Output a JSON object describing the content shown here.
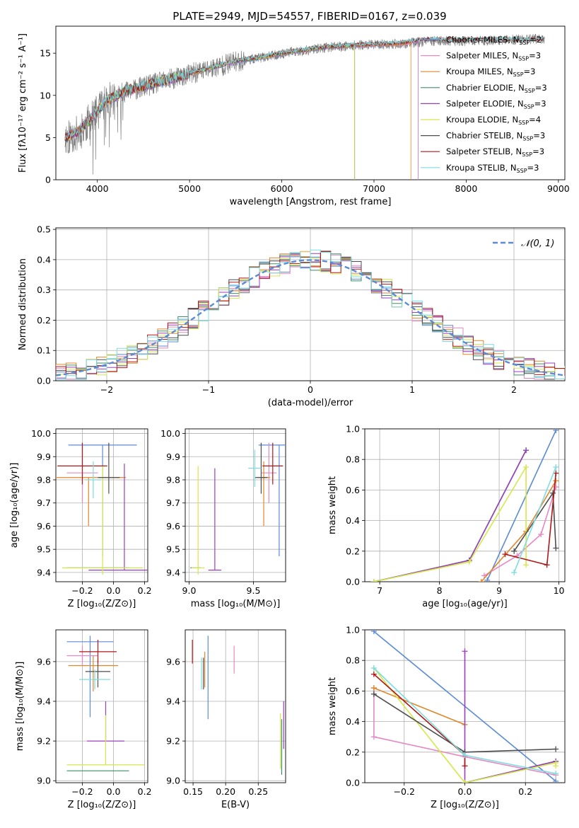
{
  "figure": {
    "title": "PLATE=2949, MJD=54557, FIBERID=0167, z=0.039"
  },
  "colors": {
    "Chabrier MILES": "#5b8bd6",
    "Salpeter MILES": "#e589c3",
    "Kroupa MILES": "#e0872c",
    "Chabrier ELODIE": "#3f8f6a",
    "Salpeter ELODIE": "#9b3fbf",
    "Kroupa ELODIE": "#d4e84a",
    "Chabrier STELIB": "#4d4d4d",
    "Salpeter STELIB": "#b01818",
    "Kroupa STELIB": "#7ddde0",
    "data": "#808080",
    "gaussian": "#5b8bd6"
  },
  "chart_data": [
    {
      "id": "spectrum",
      "type": "line",
      "xlabel": "wavelength [Angstrom, rest frame]",
      "ylabel": "Flux [fλ10⁻¹⁷ erg cm⁻² s⁻¹ A⁻¹]",
      "xlim": [
        3550,
        9070
      ],
      "ylim": [
        0,
        18.2
      ],
      "xticks": [
        4000,
        5000,
        6000,
        7000,
        8000,
        9000
      ],
      "yticks": [
        0,
        5,
        10,
        15
      ],
      "grid": false,
      "legend_position": "upper-right",
      "continuum": [
        [
          3650,
          5.0
        ],
        [
          3800,
          5.8
        ],
        [
          3950,
          7.5
        ],
        [
          4100,
          9.4
        ],
        [
          4300,
          10.5
        ],
        [
          4600,
          11.4
        ],
        [
          4900,
          12.3
        ],
        [
          5200,
          13.2
        ],
        [
          5500,
          14.1
        ],
        [
          5800,
          14.6
        ],
        [
          6100,
          15.2
        ],
        [
          6500,
          15.8
        ],
        [
          6900,
          16.0
        ],
        [
          7300,
          16.2
        ],
        [
          7500,
          16.6
        ]
      ],
      "data_continuum": [
        [
          3650,
          5.0
        ],
        [
          3800,
          5.6
        ],
        [
          3950,
          7.3
        ],
        [
          4100,
          9.2
        ],
        [
          4300,
          10.4
        ],
        [
          4600,
          11.3
        ],
        [
          4900,
          12.2
        ],
        [
          5200,
          13.1
        ],
        [
          5500,
          14.0
        ],
        [
          5800,
          14.5
        ],
        [
          6100,
          15.1
        ],
        [
          6500,
          15.7
        ],
        [
          6900,
          16.0
        ],
        [
          7300,
          16.1
        ],
        [
          7700,
          16.5
        ],
        [
          8000,
          16.4
        ],
        [
          8500,
          16.6
        ],
        [
          8850,
          16.7
        ]
      ],
      "data_range": [
        3650,
        8850
      ],
      "series": [
        {
          "name": "Chabrier MILES, N$_{SSP}$=2",
          "label": "Chabrier MILES, N",
          "ssp": "=2",
          "color_key": "Chabrier MILES",
          "x_end": 7480
        },
        {
          "name": "Salpeter MILES, N$_{SSP}$=3",
          "label": "Salpeter MILES, N",
          "ssp": "=3",
          "color_key": "Salpeter MILES",
          "x_end": 7480
        },
        {
          "name": "Kroupa MILES, N$_{SSP}$=3",
          "label": "Kroupa MILES, N",
          "ssp": "=3",
          "color_key": "Kroupa MILES",
          "x_end": 7400
        },
        {
          "name": "Chabrier ELODIE, N$_{SSP}$=3",
          "label": "Chabrier ELODIE, N",
          "ssp": "=3",
          "color_key": "Chabrier ELODIE",
          "x_end": 6790
        },
        {
          "name": "Salpeter ELODIE, N$_{SSP}$=3",
          "label": "Salpeter ELODIE, N",
          "ssp": "=3",
          "color_key": "Salpeter ELODIE",
          "x_end": 6790
        },
        {
          "name": "Kroupa ELODIE, N$_{SSP}$=4",
          "label": "Kroupa ELODIE, N",
          "ssp": "=4",
          "color_key": "Kroupa ELODIE",
          "x_end": 6790
        },
        {
          "name": "Chabrier STELIB, N$_{SSP}$=3",
          "label": "Chabrier STELIB, N",
          "ssp": "=3",
          "color_key": "Chabrier STELIB",
          "x_end": 8850
        },
        {
          "name": "Salpeter STELIB, N$_{SSP}$=3",
          "label": "Salpeter STELIB, N",
          "ssp": "=3",
          "color_key": "Salpeter STELIB",
          "x_end": 8850
        },
        {
          "name": "Kroupa STELIB, N$_{SSP}$=3",
          "label": "Kroupa STELIB, N",
          "ssp": "=3",
          "color_key": "Kroupa STELIB",
          "x_end": 8850
        }
      ]
    },
    {
      "id": "residuals",
      "type": "histogram",
      "xlabel": "(data-model)/error",
      "ylabel": "Normed distribution",
      "xlim": [
        -2.5,
        2.5
      ],
      "ylim": [
        0,
        0.505
      ],
      "xticks": [
        -2,
        -1,
        0,
        1,
        2
      ],
      "yticks": [
        0.0,
        0.1,
        0.2,
        0.3,
        0.4,
        0.5
      ],
      "grid": true,
      "legend_position": "upper-right",
      "legend": "𝒩(0, 1)",
      "bin_width": 0.1,
      "gaussian": {
        "mean": 0,
        "sigma": 1
      }
    },
    {
      "id": "age-vs-Z",
      "type": "errorbar",
      "xlabel": "Z [log₁₀(Z/Z⊙)]",
      "ylabel": "age  [log₁₀(age/yr)]",
      "xlim": [
        -0.37,
        0.22
      ],
      "ylim": [
        9.36,
        10.02
      ],
      "xticks": [
        -0.2,
        0.0,
        0.2
      ],
      "yticks": [
        9.4,
        9.5,
        9.6,
        9.7,
        9.8,
        9.9,
        10.0
      ],
      "grid": true,
      "points": [
        {
          "model": "Chabrier MILES",
          "x": -0.07,
          "xerr": 0.22,
          "y": 9.95,
          "yerr": [
            0.48,
            0.0
          ]
        },
        {
          "model": "Salpeter MILES",
          "x": -0.2,
          "xerr": 0.1,
          "y": 9.83,
          "yerr": [
            0.13,
            0.13
          ]
        },
        {
          "model": "Kroupa MILES",
          "x": -0.16,
          "xerr": 0.24,
          "y": 9.81,
          "yerr": [
            0.21,
            0.0
          ]
        },
        {
          "model": "Chabrier ELODIE",
          "x": -0.1,
          "xerr": 0.2,
          "y": 9.42,
          "yerr": [
            0.0,
            0.0
          ]
        },
        {
          "model": "Salpeter ELODIE",
          "x": 0.07,
          "xerr": 0.23,
          "y": 9.41,
          "yerr": [
            0.0,
            0.46
          ]
        },
        {
          "model": "Kroupa ELODIE",
          "x": -0.07,
          "xerr": 0.26,
          "y": 9.42,
          "yerr": [
            0.03,
            0.44
          ]
        },
        {
          "model": "Chabrier STELIB",
          "x": -0.03,
          "xerr": 0.07,
          "y": 9.81,
          "yerr": [
            0.07,
            0.15
          ]
        },
        {
          "model": "Salpeter STELIB",
          "x": -0.2,
          "xerr": 0.16,
          "y": 9.86,
          "yerr": [
            0.08,
            0.1
          ]
        },
        {
          "model": "Kroupa STELIB",
          "x": -0.13,
          "xerr": 0.05,
          "y": 9.8,
          "yerr": [
            0.08,
            0.08
          ]
        }
      ]
    },
    {
      "id": "age-vs-mass",
      "type": "errorbar",
      "xlabel": "mass [log₁₀(M/M⊙)]",
      "ylabel": "",
      "xlim": [
        8.97,
        9.75
      ],
      "ylim": [
        9.36,
        10.02
      ],
      "xticks": [
        9.0,
        9.5
      ],
      "yticks": [
        9.4,
        9.5,
        9.6,
        9.7,
        9.8,
        9.9,
        10.0
      ],
      "grid": true,
      "points": [
        {
          "model": "Chabrier MILES",
          "x": 9.7,
          "xerr": 0.16,
          "y": 9.95,
          "yerr": [
            0.48,
            0.0
          ]
        },
        {
          "model": "Salpeter MILES",
          "x": 9.62,
          "xerr": 0.06,
          "y": 9.83,
          "yerr": [
            0.13,
            0.13
          ]
        },
        {
          "model": "Kroupa MILES",
          "x": 9.58,
          "xerr": 0.05,
          "y": 9.81,
          "yerr": [
            0.21,
            0.07
          ]
        },
        {
          "model": "Chabrier ELODIE",
          "x": 9.05,
          "xerr": 0.04,
          "y": 9.42,
          "yerr": [
            0.0,
            0.0
          ]
        },
        {
          "model": "Salpeter ELODIE",
          "x": 9.2,
          "xerr": 0.05,
          "y": 9.41,
          "yerr": [
            0.0,
            0.44
          ]
        },
        {
          "model": "Kroupa ELODIE",
          "x": 9.07,
          "xerr": 0.05,
          "y": 9.42,
          "yerr": [
            0.03,
            0.44
          ]
        },
        {
          "model": "Chabrier STELIB",
          "x": 9.56,
          "xerr": 0.05,
          "y": 9.81,
          "yerr": [
            0.07,
            0.15
          ]
        },
        {
          "model": "Salpeter STELIB",
          "x": 9.65,
          "xerr": 0.08,
          "y": 9.86,
          "yerr": [
            0.08,
            0.1
          ]
        },
        {
          "model": "Kroupa STELIB",
          "x": 9.51,
          "xerr": 0.05,
          "y": 9.85,
          "yerr": [
            0.08,
            0.08
          ]
        }
      ]
    },
    {
      "id": "mass-weight-vs-age",
      "type": "line",
      "xlabel": "age  [log₁₀(age/yr)]",
      "ylabel": "mass weight",
      "xlim": [
        6.75,
        10.1
      ],
      "ylim": [
        0,
        1.0
      ],
      "xticks": [
        7,
        8,
        9,
        10
      ],
      "yticks": [
        0.0,
        0.2,
        0.4,
        0.6,
        0.8,
        1.0
      ],
      "grid": true,
      "series": [
        {
          "model": "Chabrier MILES",
          "x": [
            8.8,
            9.95
          ],
          "y": [
            0.01,
            0.99
          ]
        },
        {
          "model": "Salpeter MILES",
          "x": [
            8.75,
            9.3,
            9.7,
            9.95
          ],
          "y": [
            0.04,
            0.17,
            0.31,
            0.62
          ]
        },
        {
          "model": "Kroupa MILES",
          "x": [
            8.7,
            9.45,
            9.95
          ],
          "y": [
            0.0,
            0.33,
            0.66
          ]
        },
        {
          "model": "Chabrier ELODIE",
          "x": [
            6.9,
            8.5,
            9.45
          ],
          "y": [
            0.0,
            0.14,
            0.86
          ]
        },
        {
          "model": "Salpeter ELODIE",
          "x": [
            6.9,
            8.5,
            9.45
          ],
          "y": [
            0.0,
            0.14,
            0.86
          ]
        },
        {
          "model": "Kroupa ELODIE",
          "x": [
            6.9,
            8.5,
            9.45,
            9.45
          ],
          "y": [
            0.0,
            0.13,
            0.75,
            0.11
          ]
        },
        {
          "model": "Chabrier STELIB",
          "x": [
            9.25,
            9.9,
            9.95
          ],
          "y": [
            0.2,
            0.58,
            0.22
          ]
        },
        {
          "model": "Salpeter STELIB",
          "x": [
            9.1,
            9.8,
            9.95
          ],
          "y": [
            0.18,
            0.11,
            0.71
          ]
        },
        {
          "model": "Kroupa STELIB",
          "x": [
            9.25,
            9.95
          ],
          "y": [
            0.06,
            0.75
          ]
        }
      ]
    },
    {
      "id": "mass-vs-Z",
      "type": "errorbar",
      "xlabel": "Z [log₁₀(Z/Z⊙)]",
      "ylabel": "mass [log₁₀(M/M⊙)]",
      "xlim": [
        -0.37,
        0.22
      ],
      "ylim": [
        8.99,
        9.76
      ],
      "xticks": [
        -0.2,
        0.0,
        0.2
      ],
      "yticks": [
        9.0,
        9.2,
        9.4,
        9.6
      ],
      "grid": true,
      "points": [
        {
          "model": "Chabrier MILES",
          "x": -0.15,
          "xerr": 0.15,
          "y": 9.7,
          "yerr": [
            0.38,
            0.03
          ]
        },
        {
          "model": "Salpeter MILES",
          "x": -0.2,
          "xerr": 0.1,
          "y": 9.63,
          "yerr": [
            0.05,
            0.05
          ]
        },
        {
          "model": "Kroupa MILES",
          "x": -0.13,
          "xerr": 0.16,
          "y": 9.58,
          "yerr": [
            0.13,
            0.05
          ]
        },
        {
          "model": "Chabrier ELODIE",
          "x": -0.1,
          "xerr": 0.2,
          "y": 9.05,
          "yerr": [
            0.0,
            0.0
          ]
        },
        {
          "model": "Salpeter ELODIE",
          "x": -0.05,
          "xerr": 0.12,
          "y": 9.2,
          "yerr": [
            0.0,
            0.2
          ]
        },
        {
          "model": "Kroupa ELODIE",
          "x": -0.05,
          "xerr": 0.25,
          "y": 9.08,
          "yerr": [
            0.0,
            0.25
          ]
        },
        {
          "model": "Chabrier STELIB",
          "x": -0.1,
          "xerr": 0.08,
          "y": 9.55,
          "yerr": [
            0.08,
            0.06
          ]
        },
        {
          "model": "Salpeter STELIB",
          "x": -0.1,
          "xerr": 0.12,
          "y": 9.65,
          "yerr": [
            0.06,
            0.06
          ]
        },
        {
          "model": "Kroupa STELIB",
          "x": -0.12,
          "xerr": 0.1,
          "y": 9.51,
          "yerr": [
            0.05,
            0.05
          ]
        }
      ]
    },
    {
      "id": "mass-vs-ebv",
      "type": "errorbar",
      "xlabel": "E(B-V)",
      "ylabel": "",
      "xlim": [
        0.138,
        0.292
      ],
      "ylim": [
        8.99,
        9.76
      ],
      "xticks": [
        0.15,
        0.2,
        0.25
      ],
      "xtick_labels": [
        "0.15",
        "0.20",
        "0.25"
      ],
      "yticks": [
        9.0,
        9.2,
        9.4,
        9.6
      ],
      "grid": true,
      "points": [
        {
          "model": "Chabrier MILES",
          "x": 0.173,
          "y": 9.52,
          "yerr": [
            0.21,
            0.21
          ]
        },
        {
          "model": "Salpeter MILES",
          "x": 0.213,
          "y": 9.61,
          "yerr": [
            0.07,
            0.07
          ]
        },
        {
          "model": "Kroupa MILES",
          "x": 0.168,
          "y": 9.56,
          "yerr": [
            0.09,
            0.09
          ]
        },
        {
          "model": "Chabrier ELODIE",
          "x": 0.286,
          "y": 9.17,
          "yerr": [
            0.14,
            0.14
          ]
        },
        {
          "model": "Salpeter ELODIE",
          "x": 0.289,
          "y": 9.28,
          "yerr": [
            0.12,
            0.12
          ]
        },
        {
          "model": "Kroupa ELODIE",
          "x": 0.284,
          "y": 9.2,
          "yerr": [
            0.14,
            0.14
          ]
        },
        {
          "model": "Chabrier STELIB",
          "x": 0.166,
          "y": 9.54,
          "yerr": [
            0.08,
            0.08
          ]
        },
        {
          "model": "Salpeter STELIB",
          "x": 0.149,
          "y": 9.65,
          "yerr": [
            0.06,
            0.06
          ]
        },
        {
          "model": "Kroupa STELIB",
          "x": 0.163,
          "y": 9.54,
          "yerr": [
            0.08,
            0.08
          ]
        }
      ]
    },
    {
      "id": "mass-weight-vs-Z",
      "type": "line",
      "xlabel": "Z [log₁₀(Z/Z⊙)]",
      "ylabel": "mass weight",
      "xlim": [
        -0.33,
        0.33
      ],
      "ylim": [
        0,
        1.0
      ],
      "xticks": [
        -0.2,
        0.0,
        0.2
      ],
      "yticks": [
        0.0,
        0.2,
        0.4,
        0.6,
        0.8,
        1.0
      ],
      "grid": true,
      "series": [
        {
          "model": "Chabrier MILES",
          "x": [
            -0.3,
            0.3
          ],
          "y": [
            0.99,
            0.01
          ]
        },
        {
          "model": "Salpeter MILES",
          "x": [
            -0.3,
            -0.3,
            0.0,
            0.3
          ],
          "y": [
            0.62,
            0.3,
            0.17,
            0.05
          ]
        },
        {
          "model": "Kroupa MILES",
          "x": [
            -0.3,
            0.0
          ],
          "y": [
            0.62,
            0.38
          ]
        },
        {
          "model": "Chabrier ELODIE",
          "x": [
            0.0,
            0.3
          ],
          "y": [
            0.0,
            0.14
          ]
        },
        {
          "model": "Salpeter ELODIE",
          "x": [
            0.0,
            0.0,
            0.3
          ],
          "y": [
            0.86,
            0.0,
            0.14
          ]
        },
        {
          "model": "Kroupa ELODIE",
          "x": [
            -0.3,
            0.0,
            0.3,
            0.3
          ],
          "y": [
            0.75,
            0.0,
            0.13,
            0.11
          ]
        },
        {
          "model": "Chabrier STELIB",
          "x": [
            -0.3,
            0.0,
            0.3
          ],
          "y": [
            0.58,
            0.2,
            0.22
          ]
        },
        {
          "model": "Salpeter STELIB",
          "x": [
            -0.3,
            0.0,
            0.0
          ],
          "y": [
            0.71,
            0.18,
            0.11
          ]
        },
        {
          "model": "Kroupa STELIB",
          "x": [
            -0.3,
            0.0,
            0.3
          ],
          "y": [
            0.75,
            0.18,
            0.06
          ]
        }
      ]
    }
  ]
}
